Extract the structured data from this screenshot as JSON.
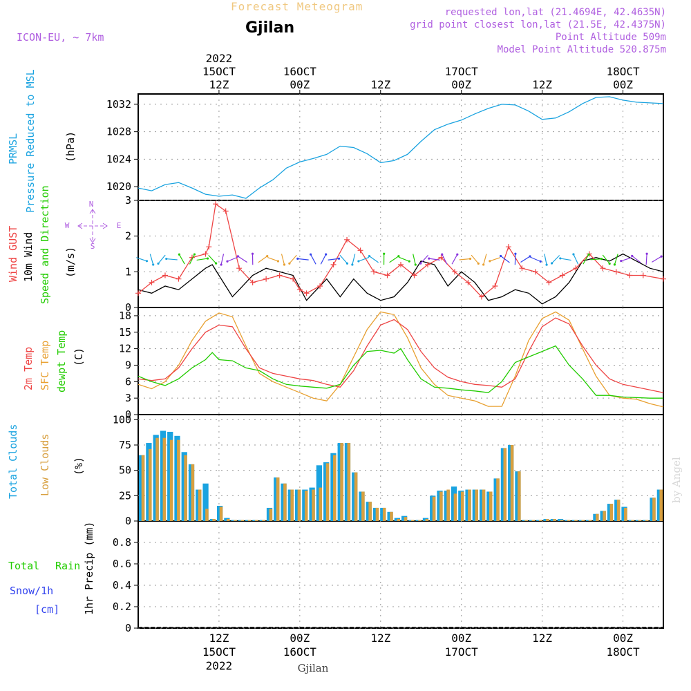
{
  "header": {
    "title": "Forecast Meteogram",
    "location": "Gjilan",
    "model": "ICON-EU, ~ 7km",
    "requested": "requested lon,lat (21.4694E, 42.4635N)",
    "grid_point": "grid point closest lon,lat (21.5E, 42.4375N)",
    "point_altitude": "Point Altitude 509m",
    "model_altitude": "Model Point Altitude 520.875m",
    "footer_location": "Gjilan",
    "watermark": "by Angel"
  },
  "colors": {
    "pressure": "#1aa3e0",
    "gust": "#ee4444",
    "wind": "#000000",
    "dir": "#22cc00",
    "temp2m": "#ee4444",
    "sfc": "#e8a030",
    "dewpt": "#22cc00",
    "total_cloud": "#1aa3e0",
    "low_cloud": "#d8a040",
    "header_purple": "#b060e0",
    "title_orange": "#f0c880",
    "snow": "#3344ee",
    "rain": "#22cc00"
  },
  "time_axis": {
    "top": [
      {
        "hour": 12,
        "lines": [
          "2022",
          "15OCT",
          "12Z"
        ]
      },
      {
        "hour": 24,
        "lines": [
          "16OCT",
          "00Z"
        ]
      },
      {
        "hour": 36,
        "lines": [
          "12Z"
        ]
      },
      {
        "hour": 48,
        "lines": [
          "17OCT",
          "00Z"
        ]
      },
      {
        "hour": 60,
        "lines": [
          "12Z"
        ]
      },
      {
        "hour": 72,
        "lines": [
          "18OCT",
          "00Z"
        ]
      }
    ],
    "bottom": [
      {
        "hour": 12,
        "lines": [
          "12Z",
          "15OCT",
          "2022"
        ]
      },
      {
        "hour": 24,
        "lines": [
          "00Z",
          "16OCT"
        ]
      },
      {
        "hour": 36,
        "lines": [
          "12Z"
        ]
      },
      {
        "hour": 48,
        "lines": [
          "00Z",
          "17OCT"
        ]
      },
      {
        "hour": 60,
        "lines": [
          "12Z"
        ]
      },
      {
        "hour": 72,
        "lines": [
          "00Z",
          "18OCT"
        ]
      }
    ]
  },
  "panels": {
    "pressure": {
      "label1": "PRMSL",
      "label2": "Pressure Reduced to MSL",
      "unit": "(hPa)"
    },
    "wind": {
      "label1": "Wind GUST",
      "label2": "10m Wind",
      "label3": "Speed and Direction",
      "unit": "(m/s)",
      "compass": [
        "N",
        "W",
        "E",
        "S"
      ]
    },
    "temp": {
      "label1": "2m Temp",
      "label2": "SFC Temp",
      "label3": "dewpt Temp",
      "unit": "(C)"
    },
    "cloud": {
      "label1": "Total Clouds",
      "label2": "Low Clouds",
      "unit": "(%)"
    },
    "precip": {
      "label1": "Total",
      "label1b": "Rain",
      "label2": "Snow/1h",
      "label3": "[cm]",
      "unit": "1hr Precip (mm)"
    }
  },
  "chart_data": [
    {
      "type": "line",
      "ylabel": "(hPa)",
      "ylim": [
        1018,
        1033.5
      ],
      "yticks": [
        1020,
        1024,
        1028,
        1032
      ],
      "x_start_hour": 0,
      "x_end_hour": 78,
      "series": [
        {
          "name": "PRMSL",
          "x": [
            0,
            2,
            4,
            6,
            8,
            10,
            12,
            14,
            16,
            18,
            20,
            22,
            24,
            26,
            28,
            30,
            32,
            34,
            36,
            38,
            40,
            42,
            44,
            46,
            48,
            50,
            52,
            54,
            56,
            58,
            60,
            62,
            64,
            66,
            68,
            70,
            72,
            74,
            76,
            78
          ],
          "values": [
            1019.8,
            1019.4,
            1020.3,
            1020.6,
            1019.8,
            1018.9,
            1018.6,
            1018.8,
            1018.3,
            1019.8,
            1021.0,
            1022.7,
            1023.6,
            1024.1,
            1024.7,
            1025.9,
            1025.7,
            1024.8,
            1023.5,
            1023.8,
            1024.7,
            1026.6,
            1028.3,
            1029.1,
            1029.7,
            1030.6,
            1031.4,
            1032.0,
            1031.9,
            1031.0,
            1029.8,
            1030.0,
            1030.9,
            1032.1,
            1033.0,
            1033.1,
            1032.6,
            1032.3,
            1032.2,
            1032.1
          ]
        }
      ]
    },
    {
      "type": "line",
      "ylabel": "(m/s)",
      "ylim": [
        0,
        3
      ],
      "yticks": [
        0,
        1,
        2,
        3
      ],
      "series": [
        {
          "name": "Wind GUST",
          "x": [
            0,
            2,
            4,
            6,
            8,
            10,
            10.5,
            11.5,
            13,
            15,
            17,
            19,
            21,
            23,
            24,
            25,
            27,
            29,
            31,
            33,
            35,
            37,
            39,
            41,
            43,
            45,
            47,
            49,
            51,
            53,
            55,
            57,
            59,
            61,
            63,
            65,
            67,
            69,
            71,
            73,
            75,
            78
          ],
          "values": [
            0.4,
            0.7,
            0.9,
            0.8,
            1.4,
            1.5,
            1.7,
            2.9,
            2.7,
            1.1,
            0.7,
            0.8,
            0.9,
            0.8,
            0.5,
            0.4,
            0.6,
            1.2,
            1.9,
            1.6,
            1.0,
            0.9,
            1.2,
            0.9,
            1.2,
            1.4,
            1.0,
            0.7,
            0.3,
            0.6,
            1.7,
            1.1,
            1.0,
            0.7,
            0.9,
            1.1,
            1.5,
            1.1,
            1.0,
            0.9,
            0.9,
            0.8
          ]
        },
        {
          "name": "10m Wind",
          "x": [
            0,
            2,
            4,
            6,
            8,
            10,
            11,
            12,
            14,
            15,
            17,
            19,
            21,
            23,
            25,
            26,
            28,
            30,
            32,
            34,
            36,
            38,
            40,
            42,
            44,
            46,
            48,
            50,
            52,
            54,
            56,
            58,
            60,
            62,
            64,
            66,
            68,
            70,
            72,
            74,
            76,
            78
          ],
          "values": [
            0.5,
            0.4,
            0.6,
            0.5,
            0.8,
            1.1,
            1.2,
            0.9,
            0.3,
            0.5,
            0.9,
            1.1,
            1.0,
            0.9,
            0.2,
            0.4,
            0.8,
            0.3,
            0.8,
            0.4,
            0.2,
            0.3,
            0.7,
            1.3,
            1.2,
            0.6,
            1.0,
            0.7,
            0.2,
            0.3,
            0.5,
            0.4,
            0.1,
            0.3,
            0.7,
            1.3,
            1.4,
            1.3,
            1.5,
            1.3,
            1.1,
            1.0
          ]
        }
      ]
    },
    {
      "type": "line",
      "ylabel": "(C)",
      "ylim": [
        0,
        19.5
      ],
      "yticks": [
        0,
        3,
        6,
        9,
        12,
        15,
        18
      ],
      "series": [
        {
          "name": "2m Temp",
          "x": [
            0,
            2,
            4,
            6,
            8,
            10,
            12,
            14,
            16,
            18,
            20,
            22,
            24,
            26,
            28,
            30,
            32,
            34,
            36,
            38,
            40,
            42,
            44,
            46,
            48,
            50,
            52,
            54,
            56,
            58,
            60,
            62,
            64,
            66,
            68,
            70,
            72,
            74,
            76,
            78
          ],
          "values": [
            6.5,
            6.2,
            6.5,
            8.5,
            12.0,
            15.0,
            16.3,
            16.0,
            12.0,
            8.5,
            7.5,
            7.0,
            6.5,
            6.2,
            5.5,
            5.0,
            8.0,
            12.5,
            16.3,
            17.3,
            15.5,
            11.5,
            8.5,
            6.8,
            6.0,
            5.5,
            5.3,
            5.0,
            6.5,
            11.5,
            16.0,
            17.6,
            16.5,
            12.5,
            9.0,
            6.5,
            5.5,
            5.0,
            4.5,
            4.0
          ]
        },
        {
          "name": "SFC Temp",
          "x": [
            0,
            2,
            4,
            6,
            8,
            10,
            12,
            14,
            16,
            18,
            20,
            22,
            24,
            26,
            28,
            30,
            32,
            34,
            36,
            38,
            40,
            42,
            44,
            46,
            48,
            50,
            52,
            54,
            56,
            58,
            60,
            62,
            64,
            66,
            68,
            70,
            72,
            74,
            76,
            78
          ],
          "values": [
            5.5,
            4.7,
            6.0,
            9.0,
            13.5,
            17.0,
            18.5,
            17.8,
            12.5,
            7.5,
            6.0,
            5.0,
            4.0,
            3.0,
            2.5,
            5.5,
            10.5,
            15.5,
            18.7,
            18.2,
            14.0,
            8.5,
            5.5,
            3.5,
            3.0,
            2.5,
            1.5,
            1.5,
            7.0,
            13.5,
            17.5,
            18.7,
            17.2,
            12.0,
            7.0,
            3.5,
            3.0,
            2.8,
            2.0,
            1.4
          ]
        },
        {
          "name": "dewpt Temp",
          "x": [
            0,
            2,
            4,
            6,
            8,
            10,
            11,
            12,
            14,
            16,
            18,
            20,
            22,
            24,
            26,
            28,
            30,
            32,
            34,
            36,
            38,
            39,
            40,
            42,
            44,
            46,
            48,
            50,
            52,
            54,
            56,
            58,
            60,
            62,
            64,
            66,
            68,
            70,
            72,
            74,
            76,
            78
          ],
          "values": [
            7.0,
            6.0,
            5.3,
            6.5,
            8.5,
            10.0,
            11.3,
            10.0,
            9.8,
            8.5,
            8.0,
            6.5,
            5.5,
            5.2,
            5.0,
            4.8,
            5.5,
            9.0,
            11.5,
            11.7,
            11.2,
            12.0,
            10.0,
            6.5,
            5.0,
            4.8,
            4.5,
            4.3,
            4.0,
            6.0,
            9.5,
            10.5,
            11.5,
            12.5,
            9.0,
            6.5,
            3.5,
            3.5,
            3.2,
            3.1,
            3.0,
            3.0
          ]
        }
      ]
    },
    {
      "type": "bar",
      "ylabel": "(%)",
      "ylim": [
        0,
        105
      ],
      "yticks": [
        0,
        25,
        50,
        75,
        100
      ],
      "series": [
        {
          "name": "Total Clouds",
          "values": [
            65,
            77,
            85,
            89,
            88,
            84,
            68,
            56,
            31,
            37,
            2,
            15,
            3,
            1,
            1,
            1,
            1,
            1,
            13,
            43,
            37,
            31,
            31,
            31,
            33,
            55,
            58,
            67,
            77,
            77,
            48,
            29,
            19,
            13,
            13,
            9,
            3,
            5,
            1,
            1,
            3,
            25,
            30,
            30,
            34,
            30,
            31,
            31,
            31,
            29,
            42,
            72,
            75,
            49,
            1,
            1,
            1,
            2,
            2,
            2,
            1,
            1,
            1,
            1,
            7,
            10,
            17,
            21,
            14,
            1,
            1,
            1,
            23,
            31
          ]
        },
        {
          "name": "Low Clouds",
          "values": [
            65,
            71,
            82,
            82,
            80,
            80,
            65,
            56,
            31,
            12,
            2,
            14,
            2,
            1,
            1,
            1,
            1,
            1,
            12,
            43,
            37,
            31,
            31,
            30,
            31,
            33,
            57,
            65,
            77,
            77,
            48,
            29,
            19,
            13,
            13,
            9,
            2,
            4,
            1,
            1,
            2,
            24,
            29,
            31,
            27,
            29,
            31,
            31,
            31,
            29,
            42,
            72,
            75,
            49,
            1,
            1,
            1,
            2,
            2,
            1,
            1,
            1,
            1,
            1,
            7,
            10,
            17,
            21,
            13,
            1,
            1,
            1,
            23,
            31
          ]
        }
      ]
    },
    {
      "type": "line",
      "ylabel": "1hr Precip (mm)",
      "ylim": [
        0,
        1
      ],
      "yticks": [
        0,
        0.2,
        0.4,
        0.6,
        0.8
      ],
      "series": [
        {
          "name": "Total",
          "x": [
            0,
            78
          ],
          "values": [
            0,
            0
          ]
        },
        {
          "name": "Snow/1h",
          "x": [
            0,
            78
          ],
          "values": [
            0,
            0
          ]
        }
      ]
    }
  ]
}
